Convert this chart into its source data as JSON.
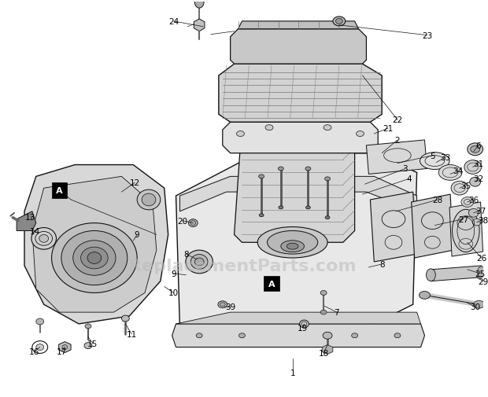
{
  "background_color": "#ffffff",
  "watermark_text": "ReplacementParts.com",
  "watermark_color": "#bbbbbb",
  "watermark_fontsize": 16,
  "watermark_alpha": 0.55,
  "figwidth": 6.2,
  "figheight": 5.06,
  "dpi": 100,
  "engine_color": "#e0e0e0",
  "line_color": "#111111",
  "label_fontsize": 7.5
}
